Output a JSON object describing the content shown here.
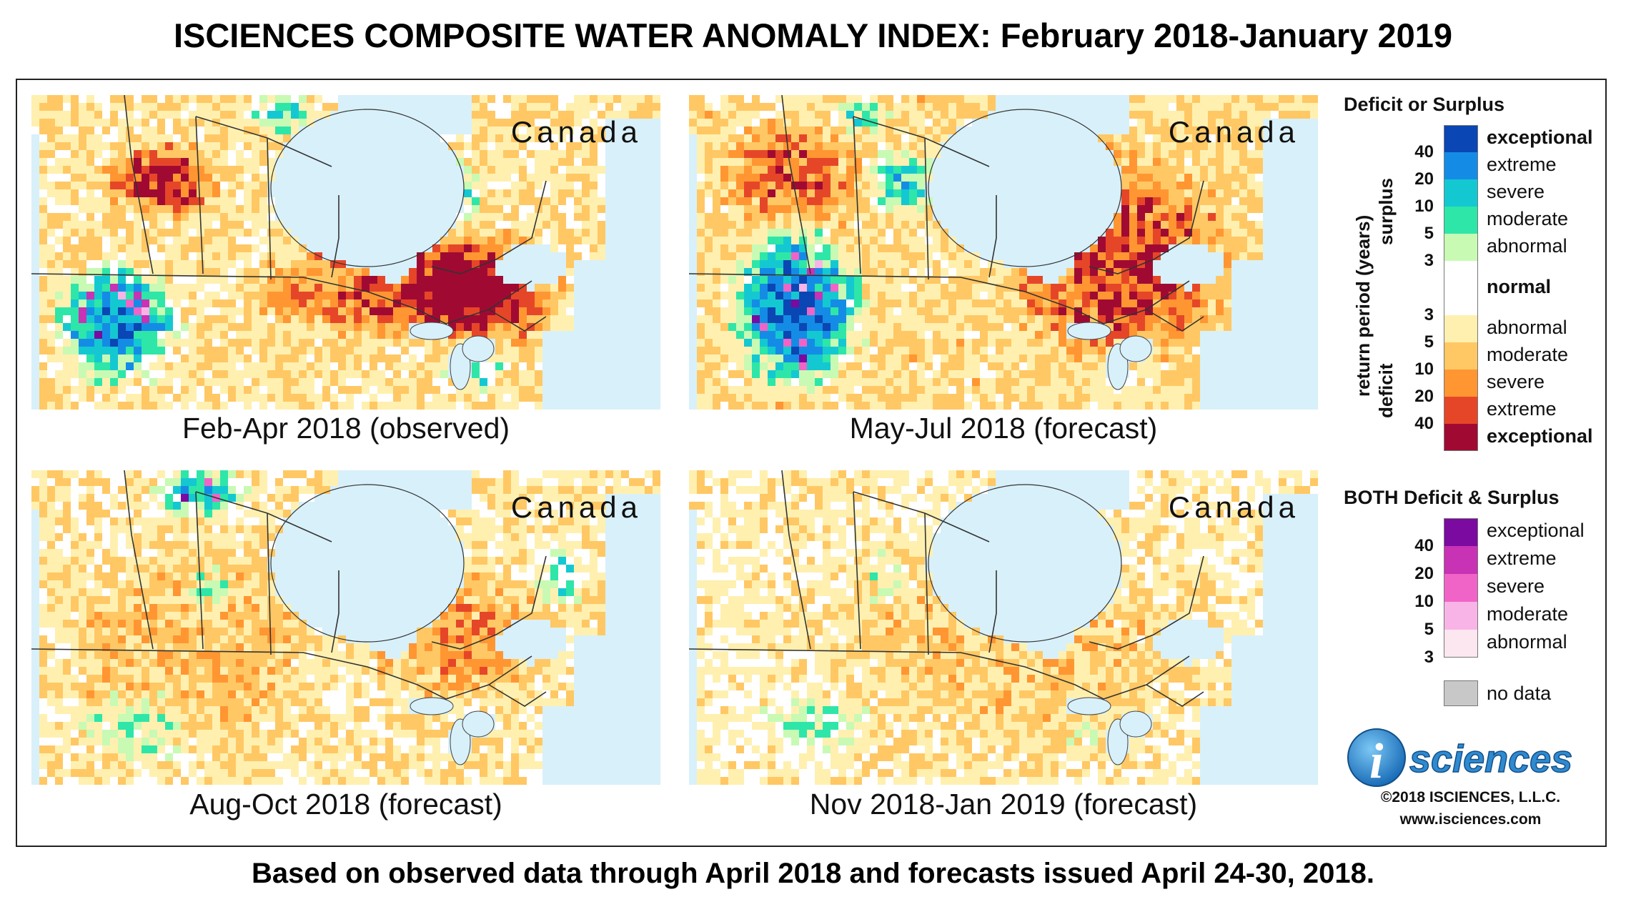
{
  "title": "ISCIENCES COMPOSITE WATER ANOMALY INDEX: February 2018-January 2019",
  "footer": "Based on observed data through April 2018 and forecasts issued April 24-30, 2018.",
  "panels": [
    {
      "region": "Canada",
      "caption": "Feb-Apr 2018 (observed)",
      "profile": "wet_dry_observed"
    },
    {
      "region": "Canada",
      "caption": "May-Jul 2018 (forecast)",
      "profile": "dry_west_wet"
    },
    {
      "region": "Canada",
      "caption": "Aug-Oct 2018 (forecast)",
      "profile": "moderate_dry"
    },
    {
      "region": "Canada",
      "caption": "Nov 2018-Jan 2019 (forecast)",
      "profile": "mild_dry"
    }
  ],
  "legend": {
    "deficit_surplus_title": "Deficit or Surplus",
    "both_title": "BOTH Deficit & Surplus",
    "axis_label": "return period (years)",
    "surplus_label": "surplus",
    "deficit_label": "deficit",
    "surplus": [
      {
        "label": "exceptional",
        "color": "#0a46b4"
      },
      {
        "label": "extreme",
        "color": "#148ce6"
      },
      {
        "label": "severe",
        "color": "#14c8d2"
      },
      {
        "label": "moderate",
        "color": "#2ee6a8"
      },
      {
        "label": "abnormal",
        "color": "#c8fab4"
      }
    ],
    "surplus_numbers": [
      "40",
      "20",
      "10",
      "5",
      "3"
    ],
    "normal": {
      "label": "normal",
      "color": "#ffffff"
    },
    "deficit": [
      {
        "label": "abnormal",
        "color": "#fff0b0"
      },
      {
        "label": "moderate",
        "color": "#ffc864"
      },
      {
        "label": "severe",
        "color": "#ff9632"
      },
      {
        "label": "extreme",
        "color": "#e64628"
      },
      {
        "label": "exceptional",
        "color": "#a00a32"
      }
    ],
    "deficit_numbers": [
      "3",
      "5",
      "10",
      "20",
      "40"
    ],
    "both": [
      {
        "label": "exceptional",
        "color": "#7a0aa0"
      },
      {
        "label": "extreme",
        "color": "#c832b4"
      },
      {
        "label": "severe",
        "color": "#f064c8"
      },
      {
        "label": "moderate",
        "color": "#f8b4e6"
      },
      {
        "label": "abnormal",
        "color": "#fce6f0"
      }
    ],
    "both_numbers": [
      "40",
      "20",
      "10",
      "5",
      "3"
    ],
    "nodata": {
      "label": "no data",
      "color": "#c8c8c8"
    }
  },
  "colors": {
    "ocean": "#d8f0fa",
    "border": "#333333",
    "text": "#111111"
  },
  "logo": {
    "letter": "i",
    "text": "sciences"
  },
  "copyright": "©2018 ISCIENCES, L.L.C.",
  "website": "www.isciences.com"
}
